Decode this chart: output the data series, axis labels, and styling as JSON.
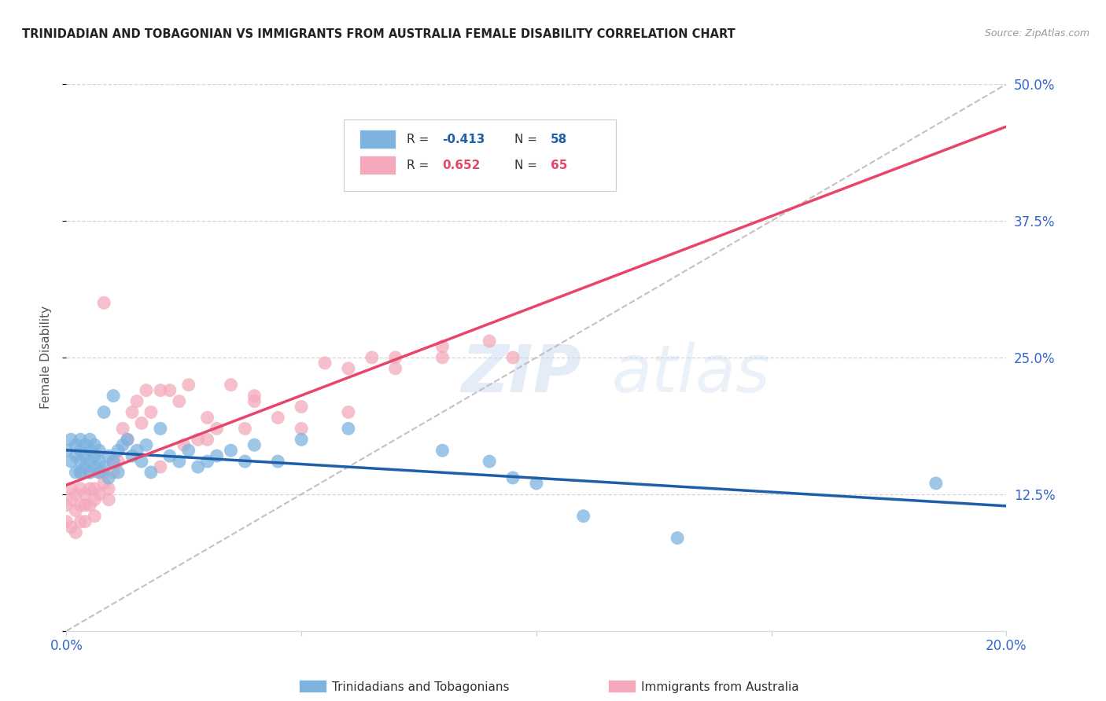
{
  "title": "TRINIDADIAN AND TOBAGONIAN VS IMMIGRANTS FROM AUSTRALIA FEMALE DISABILITY CORRELATION CHART",
  "source_text": "Source: ZipAtlas.com",
  "ylabel": "Female Disability",
  "xlim": [
    0.0,
    0.2
  ],
  "ylim": [
    0.0,
    0.5
  ],
  "yticks": [
    0.0,
    0.125,
    0.25,
    0.375,
    0.5
  ],
  "ytick_labels": [
    "",
    "12.5%",
    "25.0%",
    "37.5%",
    "50.0%"
  ],
  "xticks": [
    0.0,
    0.05,
    0.1,
    0.15,
    0.2
  ],
  "xtick_labels": [
    "0.0%",
    "",
    "",
    "",
    "20.0%"
  ],
  "blue_R": -0.413,
  "blue_N": 58,
  "pink_R": 0.652,
  "pink_N": 65,
  "blue_color": "#7EB3E0",
  "pink_color": "#F4AABC",
  "blue_line_color": "#1E5FA8",
  "pink_line_color": "#E8456A",
  "ref_line_color": "#BBBBBB",
  "background_color": "#FFFFFF",
  "grid_color": "#CCCCCC",
  "blue_scatter_x": [
    0.0,
    0.001,
    0.001,
    0.002,
    0.002,
    0.002,
    0.003,
    0.003,
    0.003,
    0.003,
    0.004,
    0.004,
    0.004,
    0.005,
    0.005,
    0.005,
    0.005,
    0.006,
    0.006,
    0.006,
    0.007,
    0.007,
    0.007,
    0.008,
    0.008,
    0.009,
    0.009,
    0.01,
    0.01,
    0.011,
    0.011,
    0.012,
    0.013,
    0.014,
    0.015,
    0.016,
    0.017,
    0.018,
    0.02,
    0.022,
    0.024,
    0.026,
    0.028,
    0.03,
    0.032,
    0.035,
    0.038,
    0.04,
    0.045,
    0.05,
    0.06,
    0.08,
    0.09,
    0.095,
    0.1,
    0.11,
    0.13,
    0.185
  ],
  "blue_scatter_y": [
    0.165,
    0.155,
    0.175,
    0.16,
    0.145,
    0.17,
    0.155,
    0.165,
    0.145,
    0.175,
    0.16,
    0.15,
    0.17,
    0.155,
    0.165,
    0.145,
    0.175,
    0.16,
    0.15,
    0.17,
    0.155,
    0.165,
    0.145,
    0.2,
    0.15,
    0.16,
    0.14,
    0.215,
    0.155,
    0.165,
    0.145,
    0.17,
    0.175,
    0.16,
    0.165,
    0.155,
    0.17,
    0.145,
    0.185,
    0.16,
    0.155,
    0.165,
    0.15,
    0.155,
    0.16,
    0.165,
    0.155,
    0.17,
    0.155,
    0.175,
    0.185,
    0.165,
    0.155,
    0.14,
    0.135,
    0.105,
    0.085,
    0.135
  ],
  "pink_scatter_x": [
    0.0,
    0.0,
    0.001,
    0.001,
    0.001,
    0.002,
    0.002,
    0.002,
    0.003,
    0.003,
    0.003,
    0.003,
    0.004,
    0.004,
    0.004,
    0.005,
    0.005,
    0.005,
    0.006,
    0.006,
    0.006,
    0.007,
    0.007,
    0.008,
    0.008,
    0.008,
    0.009,
    0.009,
    0.01,
    0.01,
    0.011,
    0.012,
    0.013,
    0.014,
    0.015,
    0.016,
    0.017,
    0.018,
    0.02,
    0.022,
    0.024,
    0.026,
    0.028,
    0.03,
    0.032,
    0.035,
    0.038,
    0.04,
    0.045,
    0.05,
    0.055,
    0.06,
    0.065,
    0.07,
    0.08,
    0.09,
    0.095,
    0.06,
    0.07,
    0.08,
    0.04,
    0.05,
    0.03,
    0.025,
    0.02
  ],
  "pink_scatter_y": [
    0.115,
    0.1,
    0.12,
    0.095,
    0.13,
    0.11,
    0.125,
    0.09,
    0.115,
    0.13,
    0.1,
    0.145,
    0.115,
    0.125,
    0.1,
    0.13,
    0.115,
    0.145,
    0.12,
    0.13,
    0.105,
    0.145,
    0.125,
    0.3,
    0.135,
    0.145,
    0.12,
    0.13,
    0.155,
    0.145,
    0.155,
    0.185,
    0.175,
    0.2,
    0.21,
    0.19,
    0.22,
    0.2,
    0.22,
    0.22,
    0.21,
    0.225,
    0.175,
    0.195,
    0.185,
    0.225,
    0.185,
    0.215,
    0.195,
    0.205,
    0.245,
    0.24,
    0.25,
    0.25,
    0.26,
    0.265,
    0.25,
    0.2,
    0.24,
    0.25,
    0.21,
    0.185,
    0.175,
    0.17,
    0.15
  ],
  "watermark_zip": "ZIP",
  "watermark_atlas": "atlas"
}
